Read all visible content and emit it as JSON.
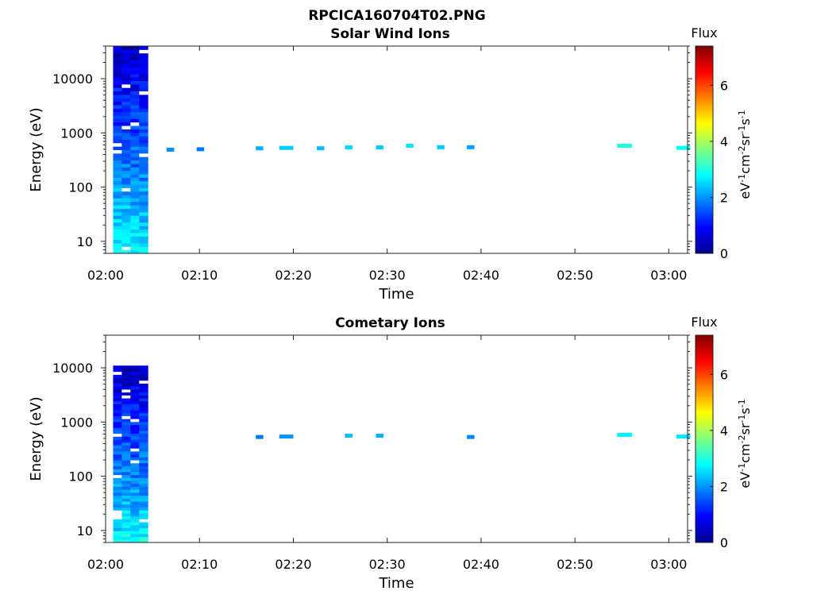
{
  "figure_title": "RPCICA160704T02.PNG",
  "chart_data": [
    {
      "type": "heatmap",
      "title": "Solar Wind Ions",
      "xlabel": "Time",
      "ylabel": "Energy (eV)",
      "x_ticks": [
        "02:00",
        "02:10",
        "02:20",
        "02:30",
        "02:40",
        "02:50",
        "03:00"
      ],
      "x_range_minutes": [
        0,
        62
      ],
      "y_scale": "log",
      "y_ticks": [
        10,
        100,
        1000,
        10000
      ],
      "y_range": [
        6,
        40000
      ],
      "colorbar": {
        "label_top": "Flux",
        "label": "eV-1cm-2sr-1s-1",
        "ticks": [
          0,
          2,
          4,
          6
        ],
        "range": [
          0,
          7.4
        ],
        "colormap": "jet"
      },
      "dense_block_minutes": [
        0.8,
        4.5
      ],
      "dense_block_energy": [
        6,
        40000
      ],
      "features": [
        {
          "t": 6.5,
          "dt": 0.8,
          "e": 490,
          "flux": 2.0
        },
        {
          "t": 9.7,
          "dt": 0.8,
          "e": 500,
          "flux": 1.8
        },
        {
          "t": 16.0,
          "dt": 0.8,
          "e": 520,
          "flux": 2.2
        },
        {
          "t": 18.5,
          "dt": 1.5,
          "e": 530,
          "flux": 2.4
        },
        {
          "t": 22.5,
          "dt": 0.8,
          "e": 520,
          "flux": 2.3
        },
        {
          "t": 25.5,
          "dt": 0.8,
          "e": 540,
          "flux": 2.5
        },
        {
          "t": 28.8,
          "dt": 0.8,
          "e": 540,
          "flux": 2.4
        },
        {
          "t": 32.0,
          "dt": 0.8,
          "e": 580,
          "flux": 2.6
        },
        {
          "t": 35.3,
          "dt": 0.8,
          "e": 545,
          "flux": 2.4
        },
        {
          "t": 38.5,
          "dt": 0.8,
          "e": 545,
          "flux": 2.1
        },
        {
          "t": 54.5,
          "dt": 1.6,
          "e": 580,
          "flux": 3.0
        },
        {
          "t": 60.8,
          "dt": 1.5,
          "e": 530,
          "flux": 2.8
        }
      ]
    },
    {
      "type": "heatmap",
      "title": "Cometary Ions",
      "xlabel": "Time",
      "ylabel": "Energy (eV)",
      "x_ticks": [
        "02:00",
        "02:10",
        "02:20",
        "02:30",
        "02:40",
        "02:50",
        "03:00"
      ],
      "x_range_minutes": [
        0,
        62
      ],
      "y_scale": "log",
      "y_ticks": [
        10,
        100,
        1000,
        10000
      ],
      "y_range": [
        6,
        40000
      ],
      "colorbar": {
        "label_top": "Flux",
        "label": "eV-1cm-2sr-1s-1",
        "ticks": [
          0,
          2,
          4,
          6
        ],
        "range": [
          0,
          7.4
        ],
        "colormap": "jet"
      },
      "dense_block_minutes": [
        0.8,
        4.5
      ],
      "dense_block_energy": [
        6,
        11000
      ],
      "features": [
        {
          "t": 16.0,
          "dt": 0.8,
          "e": 530,
          "flux": 1.8
        },
        {
          "t": 18.5,
          "dt": 1.5,
          "e": 540,
          "flux": 2.0
        },
        {
          "t": 25.5,
          "dt": 0.8,
          "e": 560,
          "flux": 2.3
        },
        {
          "t": 28.8,
          "dt": 0.8,
          "e": 560,
          "flux": 2.2
        },
        {
          "t": 38.5,
          "dt": 0.8,
          "e": 530,
          "flux": 1.9
        },
        {
          "t": 54.5,
          "dt": 1.6,
          "e": 580,
          "flux": 2.7
        },
        {
          "t": 60.8,
          "dt": 1.5,
          "e": 540,
          "flux": 2.6
        }
      ]
    }
  ]
}
